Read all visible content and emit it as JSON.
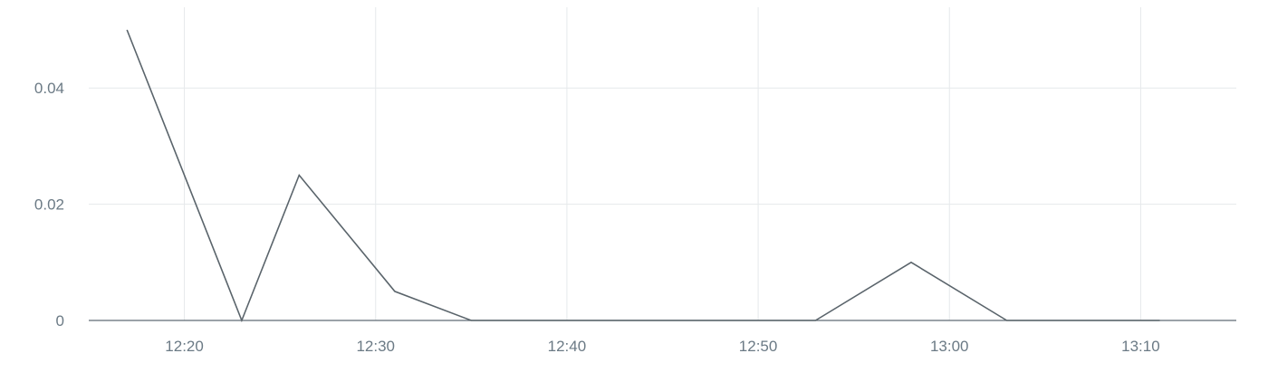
{
  "chart_data": {
    "type": "line",
    "title": "",
    "xlabel": "",
    "ylabel": "",
    "x_ticks": [
      "12:20",
      "12:30",
      "12:40",
      "12:50",
      "13:00",
      "13:10"
    ],
    "y_ticks": [
      0,
      0.02,
      0.04
    ],
    "y_tick_labels": [
      "0",
      "0.02",
      "0.04"
    ],
    "xlim": [
      "12:15",
      "13:15"
    ],
    "ylim": [
      0,
      0.05
    ],
    "grid": true,
    "colors": {
      "series": "#5a646b",
      "grid": "#e6e9eb",
      "axis": "#5f6b73",
      "tick_text": "#6b7a85"
    },
    "series": [
      {
        "x": [
          "12:17",
          "12:23",
          "12:26",
          "12:31",
          "12:35",
          "12:53",
          "12:58",
          "13:03",
          "13:11"
        ],
        "y": [
          0.05,
          0,
          0.025,
          0.005,
          0,
          0,
          0.01,
          0,
          0
        ]
      }
    ]
  }
}
